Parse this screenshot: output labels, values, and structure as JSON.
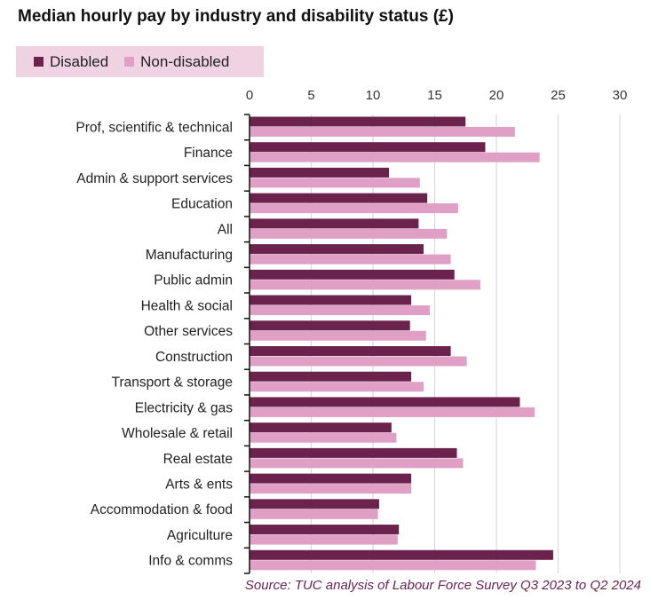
{
  "chart_data": {
    "type": "bar",
    "orientation": "horizontal",
    "title": "Median hourly pay by industry and disability status (£)",
    "categories": [
      "Prof, scientific & technical",
      "Finance",
      "Admin & support services",
      "Education",
      "All",
      "Manufacturing",
      "Public admin",
      "Health & social",
      "Other services",
      "Construction",
      "Transport & storage",
      "Electricity & gas",
      "Wholesale & retail",
      "Real estate",
      "Arts & ents",
      "Accommodation & food",
      "Agriculture",
      "Info & comms"
    ],
    "series": [
      {
        "name": "Disabled",
        "color": "#6b224c",
        "values": [
          17.5,
          19.1,
          11.3,
          14.4,
          13.7,
          14.1,
          16.6,
          13.1,
          13.0,
          16.3,
          13.1,
          21.9,
          11.5,
          16.8,
          13.1,
          10.5,
          12.1,
          24.6
        ]
      },
      {
        "name": "Non-disabled",
        "color": "#e09fc5",
        "values": [
          21.5,
          23.5,
          13.8,
          16.9,
          16.0,
          16.3,
          18.7,
          14.6,
          14.3,
          17.6,
          14.1,
          23.1,
          11.9,
          17.3,
          13.1,
          10.4,
          12.0,
          23.2
        ]
      }
    ],
    "xlim": [
      0,
      30
    ],
    "xticks": [
      0,
      5,
      10,
      15,
      20,
      25,
      30
    ],
    "grid": true,
    "axis_position": "top",
    "legend_position": "top-left",
    "source": "Source: TUC analysis of Labour Force Survey Q3 2023 to Q2 2024"
  }
}
